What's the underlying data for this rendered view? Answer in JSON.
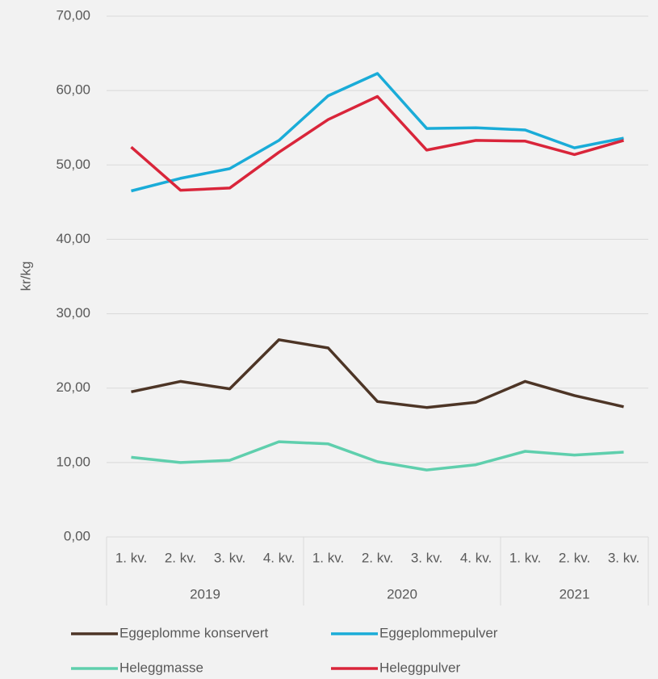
{
  "chart_data": {
    "type": "line",
    "y_label": "kr/kg",
    "groups": [
      {
        "label": "2019",
        "categories": [
          "1. kv.",
          "2. kv.",
          "3. kv.",
          "4. kv."
        ]
      },
      {
        "label": "2020",
        "categories": [
          "1. kv.",
          "2. kv.",
          "3. kv.",
          "4. kv."
        ]
      },
      {
        "label": "2021",
        "categories": [
          "1. kv.",
          "2. kv.",
          "3. kv."
        ]
      }
    ],
    "series": [
      {
        "name": "Eggeplomme konservert",
        "color": "#4d3526",
        "values": [
          19.5,
          20.9,
          19.9,
          26.5,
          25.4,
          18.2,
          17.4,
          18.1,
          20.9,
          19.0,
          17.5
        ]
      },
      {
        "name": "Eggeplommepulver",
        "color": "#1aacd8",
        "values": [
          46.5,
          48.2,
          49.5,
          53.3,
          59.3,
          62.3,
          54.9,
          55.0,
          54.7,
          52.3,
          53.6
        ]
      },
      {
        "name": "Heleggmasse",
        "color": "#5fcfad",
        "values": [
          10.7,
          10.0,
          10.3,
          12.8,
          12.5,
          10.1,
          9.0,
          9.7,
          11.5,
          11.0,
          11.4
        ]
      },
      {
        "name": "Heleggpulver",
        "color": "#d9253a",
        "values": [
          52.4,
          46.6,
          46.9,
          51.7,
          56.1,
          59.2,
          52.0,
          53.3,
          53.2,
          51.4,
          53.3
        ]
      }
    ],
    "ylim": [
      0,
      70
    ],
    "yticks": [
      {
        "value": 0,
        "label": "0,00"
      },
      {
        "value": 10,
        "label": "10,00"
      },
      {
        "value": 20,
        "label": "20,00"
      },
      {
        "value": 30,
        "label": "30,00"
      },
      {
        "value": 40,
        "label": "40,00"
      },
      {
        "value": 50,
        "label": "50,00"
      },
      {
        "value": 60,
        "label": "60,00"
      },
      {
        "value": 70,
        "label": "70,00"
      }
    ],
    "grid": true,
    "legend": "bottom"
  }
}
